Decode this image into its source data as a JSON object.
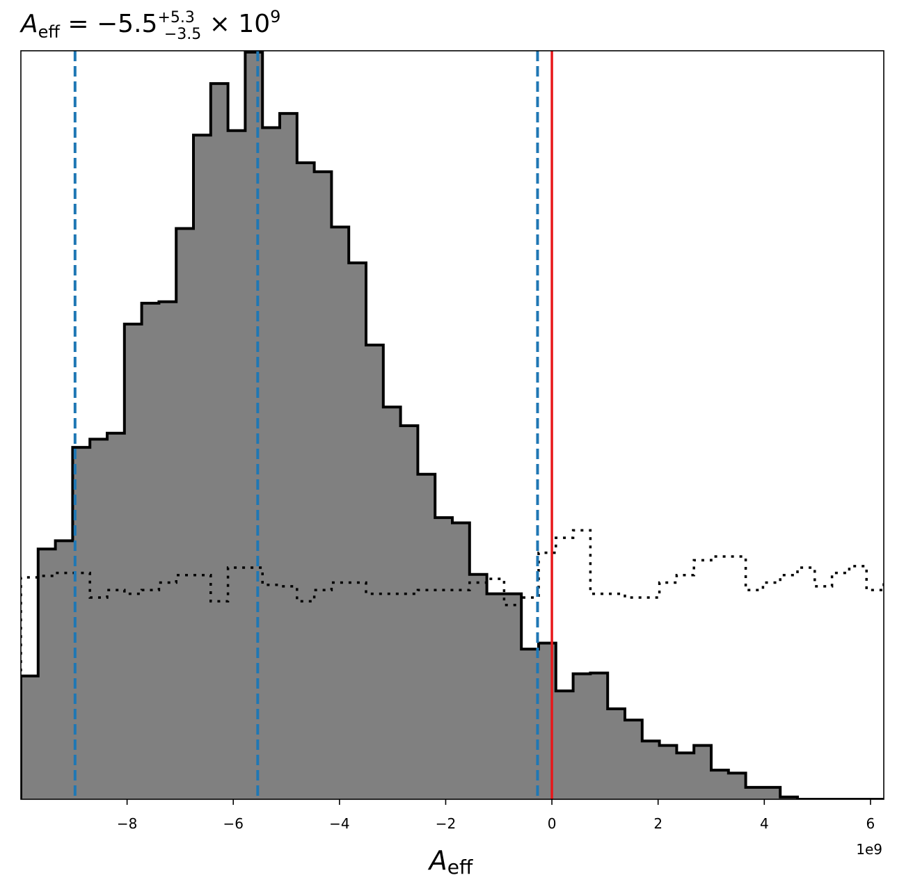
{
  "chart_data": {
    "type": "histogram",
    "title": {
      "symbol": "A",
      "symbol_sub": "eff",
      "equals": " = ",
      "value": "−5.5",
      "err_plus": "+5.3",
      "err_minus": "−3.5",
      "times": " × 10",
      "exponent": "9"
    },
    "xlabel": {
      "symbol": "A",
      "sub": "eff"
    },
    "x_offset_label": "1e9",
    "xlim": [
      -10.0,
      6.25
    ],
    "ylim": [
      0,
      1.0
    ],
    "xticks": [
      {
        "value": -8,
        "label": "−8"
      },
      {
        "value": -6,
        "label": "−6"
      },
      {
        "value": -4,
        "label": "−4"
      },
      {
        "value": -2,
        "label": "−2"
      },
      {
        "value": 0,
        "label": "0"
      },
      {
        "value": 2,
        "label": "2"
      },
      {
        "value": 4,
        "label": "4"
      },
      {
        "value": 6,
        "label": "6"
      }
    ],
    "bin_start": -10.0,
    "bin_width": 0.325,
    "posterior_counts": [
      0.165,
      0.335,
      0.346,
      0.471,
      0.482,
      0.49,
      0.636,
      0.664,
      0.666,
      0.764,
      0.889,
      0.958,
      0.895,
      1.0,
      0.899,
      0.918,
      0.852,
      0.84,
      0.766,
      0.718,
      0.608,
      0.525,
      0.5,
      0.435,
      0.377,
      0.37,
      0.301,
      0.275,
      0.275,
      0.201,
      0.209,
      0.145,
      0.168,
      0.169,
      0.121,
      0.106,
      0.078,
      0.072,
      0.062,
      0.072,
      0.039,
      0.035,
      0.016,
      0.016,
      0.003,
      0.0,
      0.0,
      0.0,
      0.0,
      0.0
    ],
    "prior_counts": [
      0.297,
      0.299,
      0.303,
      0.303,
      0.27,
      0.28,
      0.275,
      0.28,
      0.29,
      0.3,
      0.3,
      0.265,
      0.31,
      0.31,
      0.287,
      0.285,
      0.265,
      0.28,
      0.29,
      0.29,
      0.275,
      0.275,
      0.275,
      0.28,
      0.28,
      0.28,
      0.29,
      0.295,
      0.26,
      0.27,
      0.33,
      0.35,
      0.36,
      0.275,
      0.275,
      0.27,
      0.27,
      0.29,
      0.3,
      0.32,
      0.325,
      0.325,
      0.28,
      0.29,
      0.3,
      0.31,
      0.285,
      0.303,
      0.312,
      0.28
    ],
    "prior_counts_right": [
      0.29,
      0.28,
      0.3,
      0.31,
      0.29,
      0.285,
      0.283,
      0.31,
      0.32,
      0.325,
      0.33,
      0.33,
      0.31,
      0.285,
      0.27,
      0.32,
      0.32,
      0.305,
      0.31,
      0.315,
      0.33,
      0.33,
      0.305,
      0.31,
      0.325,
      0.33
    ],
    "quantile_lines": [
      -8.98,
      -5.54,
      -0.27
    ],
    "truth_line": 0.0,
    "colors": {
      "fill": "#808080",
      "edge": "#000000",
      "quantile": "#1f77b4",
      "truth": "#e8171a",
      "prior": "#000000"
    }
  }
}
